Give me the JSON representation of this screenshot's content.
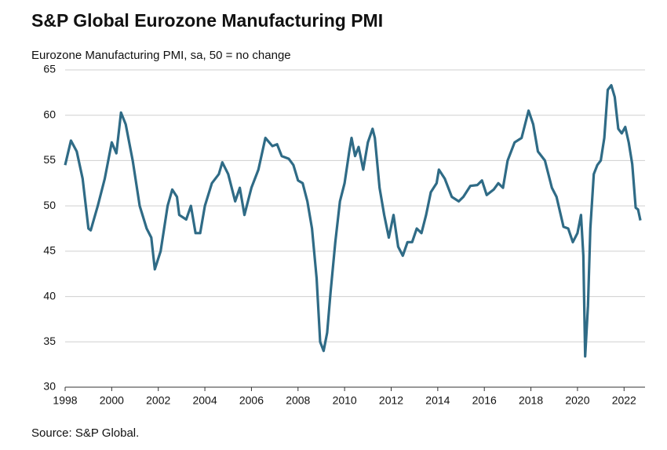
{
  "chart_data": {
    "type": "line",
    "title": "S&P Global Eurozone Manufacturing PMI",
    "subtitle": "Eurozone Manufacturing PMI, sa, 50 = no change",
    "source": "Source: S&P Global.",
    "color": "#2f6b86",
    "x": [
      1998.0,
      1998.25,
      1998.5,
      1998.75,
      1999.0,
      1999.1,
      1999.4,
      1999.7,
      2000.0,
      2000.2,
      2000.4,
      2000.6,
      2000.9,
      2001.2,
      2001.5,
      2001.7,
      2001.85,
      2002.1,
      2002.4,
      2002.6,
      2002.8,
      2002.9,
      2003.2,
      2003.4,
      2003.6,
      2003.8,
      2004.0,
      2004.3,
      2004.6,
      2004.75,
      2005.0,
      2005.3,
      2005.5,
      2005.7,
      2006.0,
      2006.3,
      2006.6,
      2006.9,
      2007.1,
      2007.3,
      2007.6,
      2007.8,
      2008.0,
      2008.2,
      2008.4,
      2008.6,
      2008.8,
      2008.95,
      2009.1,
      2009.25,
      2009.4,
      2009.6,
      2009.8,
      2010.0,
      2010.2,
      2010.3,
      2010.45,
      2010.6,
      2010.8,
      2011.0,
      2011.2,
      2011.3,
      2011.5,
      2011.7,
      2011.9,
      2012.1,
      2012.3,
      2012.5,
      2012.7,
      2012.9,
      2013.1,
      2013.3,
      2013.5,
      2013.7,
      2013.95,
      2014.05,
      2014.3,
      2014.6,
      2014.9,
      2015.1,
      2015.4,
      2015.7,
      2015.9,
      2016.1,
      2016.4,
      2016.6,
      2016.8,
      2017.0,
      2017.3,
      2017.6,
      2017.9,
      2018.1,
      2018.3,
      2018.6,
      2018.9,
      2019.1,
      2019.4,
      2019.6,
      2019.8,
      2020.0,
      2020.15,
      2020.25,
      2020.33,
      2020.45,
      2020.55,
      2020.7,
      2020.85,
      2021.0,
      2021.15,
      2021.3,
      2021.45,
      2021.6,
      2021.75,
      2021.9,
      2022.05,
      2022.2,
      2022.35,
      2022.5,
      2022.6,
      2022.7
    ],
    "values": [
      54.5,
      57.2,
      56,
      53,
      47.5,
      47.3,
      50,
      53,
      57,
      55.8,
      60.3,
      59,
      55,
      50,
      47.5,
      46.5,
      43,
      45,
      50,
      51.8,
      51,
      49,
      48.5,
      50,
      47,
      47,
      50,
      52.5,
      53.5,
      54.8,
      53.5,
      50.5,
      52,
      49,
      52,
      54,
      57.5,
      56.6,
      56.8,
      55.5,
      55.2,
      54.5,
      52.8,
      52.5,
      50.5,
      47.5,
      42,
      35,
      34,
      36,
      40.5,
      46,
      50.5,
      52.5,
      56,
      57.5,
      55.5,
      56.5,
      54,
      57,
      58.5,
      57.5,
      52,
      49,
      46.5,
      49,
      45.5,
      44.5,
      46,
      46,
      47.5,
      47,
      49,
      51.5,
      52.5,
      54,
      53,
      51,
      50.5,
      51,
      52.2,
      52.3,
      52.8,
      51.2,
      51.8,
      52.5,
      52,
      55,
      57,
      57.5,
      60.5,
      59,
      56,
      55,
      52,
      51,
      47.7,
      47.5,
      46,
      47,
      49,
      44.5,
      33.4,
      39,
      47.5,
      53.5,
      54.5,
      55,
      57.5,
      62.8,
      63.3,
      62,
      58.5,
      58,
      58.7,
      57,
      54.6,
      49.8,
      49.6,
      48.4
    ],
    "xlim": [
      1998,
      2022.9
    ],
    "xticks": [
      1998,
      2000,
      2002,
      2004,
      2006,
      2008,
      2010,
      2012,
      2014,
      2016,
      2018,
      2020,
      2022
    ],
    "ylim": [
      30,
      65
    ],
    "yticks": [
      30,
      35,
      40,
      45,
      50,
      55,
      60,
      65
    ],
    "grid": true
  }
}
